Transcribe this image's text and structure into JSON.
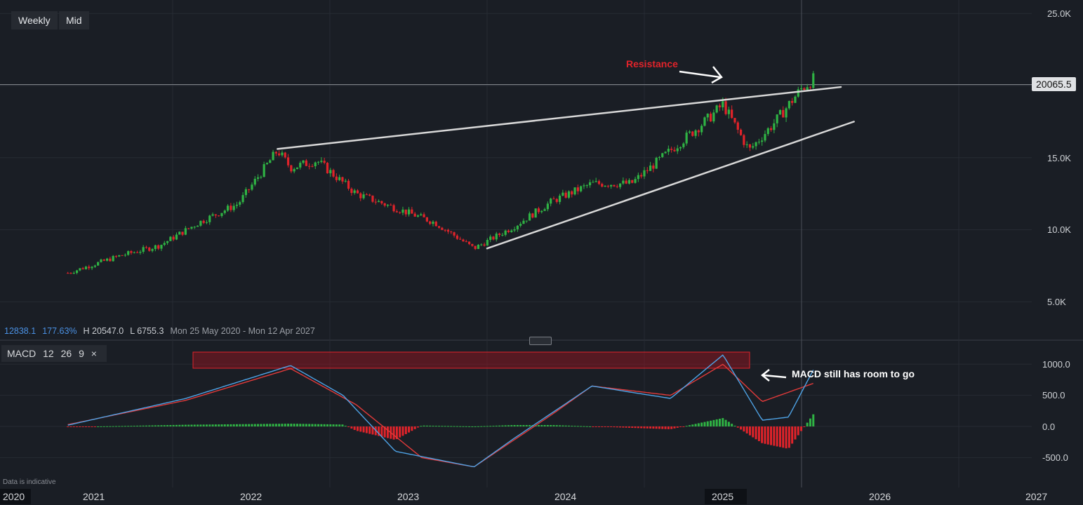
{
  "toolbar": {
    "interval_label": "Weekly",
    "price_type_label": "Mid"
  },
  "info": {
    "last": "12838.1",
    "change_pct": "177.63%",
    "high": "H 20547.0",
    "low": "L 6755.3",
    "range": "Mon 25 May 2020 - Mon 12 Apr 2027"
  },
  "price_axis": {
    "labels": [
      "25.0K",
      "15.0K",
      "10.0K",
      "5.0K"
    ],
    "current_price": "20065.5"
  },
  "macd_panel": {
    "label": "MACD",
    "fast": "12",
    "slow": "26",
    "signal": "9",
    "close_symbol": "×",
    "axis_labels": [
      "1000.0",
      "500.0",
      "0.0",
      "-500.0"
    ]
  },
  "x_axis": {
    "labels": [
      "2020",
      "2021",
      "2022",
      "2023",
      "2024",
      "2025",
      "2026",
      "2027"
    ]
  },
  "annotations": {
    "resistance": "Resistance",
    "macd_note": "MACD still has room to go"
  },
  "disclaimer": "Data is indicative",
  "colors": {
    "bg": "#1a1e25",
    "up": "#2fb344",
    "down": "#e0232a",
    "macd": "#4ea3e6",
    "signal": "#e23a3a",
    "trendline": "#d8d8d8"
  },
  "chart_data": [
    {
      "type": "candlestick",
      "interval": "weekly",
      "ylim": [
        5000,
        25000
      ],
      "points": [
        [
          "2020-05",
          7000
        ],
        [
          "2020-09",
          8200
        ],
        [
          "2020-12",
          8900
        ],
        [
          "2021-03",
          10500
        ],
        [
          "2021-06",
          11800
        ],
        [
          "2021-09",
          15500
        ],
        [
          "2021-10",
          14300
        ],
        [
          "2021-12",
          14800
        ],
        [
          "2022-03",
          12500
        ],
        [
          "2022-06",
          11500
        ],
        [
          "2022-09",
          10500
        ],
        [
          "2022-12",
          8700
        ],
        [
          "2023-03",
          10200
        ],
        [
          "2023-06",
          12000
        ],
        [
          "2023-09",
          13200
        ],
        [
          "2023-12",
          13200
        ],
        [
          "2024-03",
          15500
        ],
        [
          "2024-06",
          17800
        ],
        [
          "2024-07",
          18700
        ],
        [
          "2024-09",
          15500
        ],
        [
          "2024-11",
          17500
        ],
        [
          "2025-01",
          19800
        ],
        [
          "2025-02",
          20500
        ]
      ],
      "trendlines": [
        {
          "name": "upper",
          "from": [
            "2021-09",
            15600
          ],
          "to": [
            "2025-04",
            19900
          ]
        },
        {
          "name": "lower",
          "from": [
            "2023-01",
            8700
          ],
          "to": [
            "2025-05",
            17500
          ]
        }
      ],
      "horizontal_line": 20065.5
    },
    {
      "type": "macd",
      "params": [
        12,
        26,
        9
      ],
      "ylim": [
        -800,
        1250
      ],
      "macd_points": [
        [
          "2020-05",
          20
        ],
        [
          "2021-02",
          450
        ],
        [
          "2021-10",
          980
        ],
        [
          "2022-02",
          500
        ],
        [
          "2022-06",
          -400
        ],
        [
          "2022-12",
          -650
        ],
        [
          "2023-03",
          -200
        ],
        [
          "2023-09",
          650
        ],
        [
          "2024-03",
          450
        ],
        [
          "2024-07",
          1150
        ],
        [
          "2024-10",
          100
        ],
        [
          "2024-12",
          150
        ],
        [
          "2025-02",
          950
        ]
      ],
      "signal_points": [
        [
          "2020-05",
          30
        ],
        [
          "2021-02",
          420
        ],
        [
          "2021-10",
          930
        ],
        [
          "2022-03",
          350
        ],
        [
          "2022-08",
          -500
        ],
        [
          "2022-12",
          -650
        ],
        [
          "2023-06",
          200
        ],
        [
          "2023-09",
          650
        ],
        [
          "2024-03",
          500
        ],
        [
          "2024-07",
          1000
        ],
        [
          "2024-10",
          400
        ],
        [
          "2025-02",
          700
        ]
      ]
    }
  ]
}
